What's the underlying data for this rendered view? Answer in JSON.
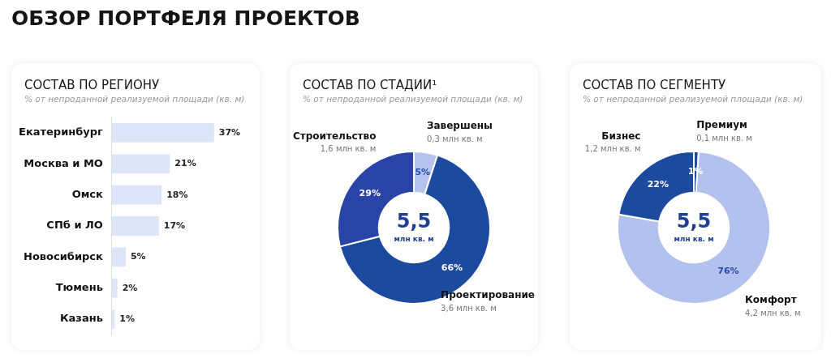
{
  "chart_data": [
    {
      "type": "bar",
      "orientation": "horizontal",
      "title": "СОСТАВ ПО РЕГИОНУ",
      "subtitle": "% от непроданной реализуемой площади (кв. м)",
      "annotations": [
        "ОБЗОР ПОРТФЕЛЯ ПРОЕКТОВ"
      ],
      "categories": [
        "Екатеринбург",
        "Москва и МО",
        "Омск",
        "СПб и ЛО",
        "Новосибирск",
        "Тюмень",
        "Казань"
      ],
      "values": [
        37,
        21,
        18,
        17,
        5,
        2,
        1
      ],
      "value_labels": [
        "37%",
        "21%",
        "18%",
        "17%",
        "5%",
        "2%",
        "1%"
      ],
      "color": "#dce6f8",
      "legend": false
    },
    {
      "type": "donut",
      "title": "СОСТАВ ПО СТАДИИ¹",
      "subtitle": "% от непроданной реализуемой площади (кв. м)",
      "categories": [
        "Завершены",
        "Проектирование",
        "Строительство"
      ],
      "values": [
        5,
        66,
        29
      ],
      "value_labels": [
        "5%",
        "66%",
        "29%"
      ],
      "colors": [
        "#b4c4ee",
        "#1c4a9e",
        "#2a43a6"
      ],
      "legend": false,
      "annotations": [
        "5,5",
        "млн кв. м",
        {
          "text": "0,3 млн кв. м",
          "x": "Завершены"
        },
        {
          "text": "3,6 млн кв. м",
          "x": "Проектирование"
        },
        {
          "text": "1,6 млн кв. м",
          "x": "Строительство"
        }
      ]
    },
    {
      "type": "donut",
      "title": "СОСТАВ ПО СЕГМЕНТУ",
      "subtitle": "% от непроданной реализуемой площади (кв. м)",
      "categories": [
        "Премиум",
        "Комфорт",
        "Бизнес"
      ],
      "values": [
        1,
        76,
        22
      ],
      "value_labels": [
        "1%",
        "76%",
        "22%"
      ],
      "colors": [
        "#1f48a0",
        "#b2c1ed",
        "#1c4a9e"
      ],
      "legend": false,
      "annotations": [
        "5,5",
        "млн кв. м",
        {
          "text": "0,1 млн кв. м",
          "x": "Премиум"
        },
        {
          "text": "4,2 млн кв. м",
          "x": "Комфорт"
        },
        {
          "text": "1,2 млн кв. м",
          "x": "Бизнес"
        }
      ]
    }
  ]
}
